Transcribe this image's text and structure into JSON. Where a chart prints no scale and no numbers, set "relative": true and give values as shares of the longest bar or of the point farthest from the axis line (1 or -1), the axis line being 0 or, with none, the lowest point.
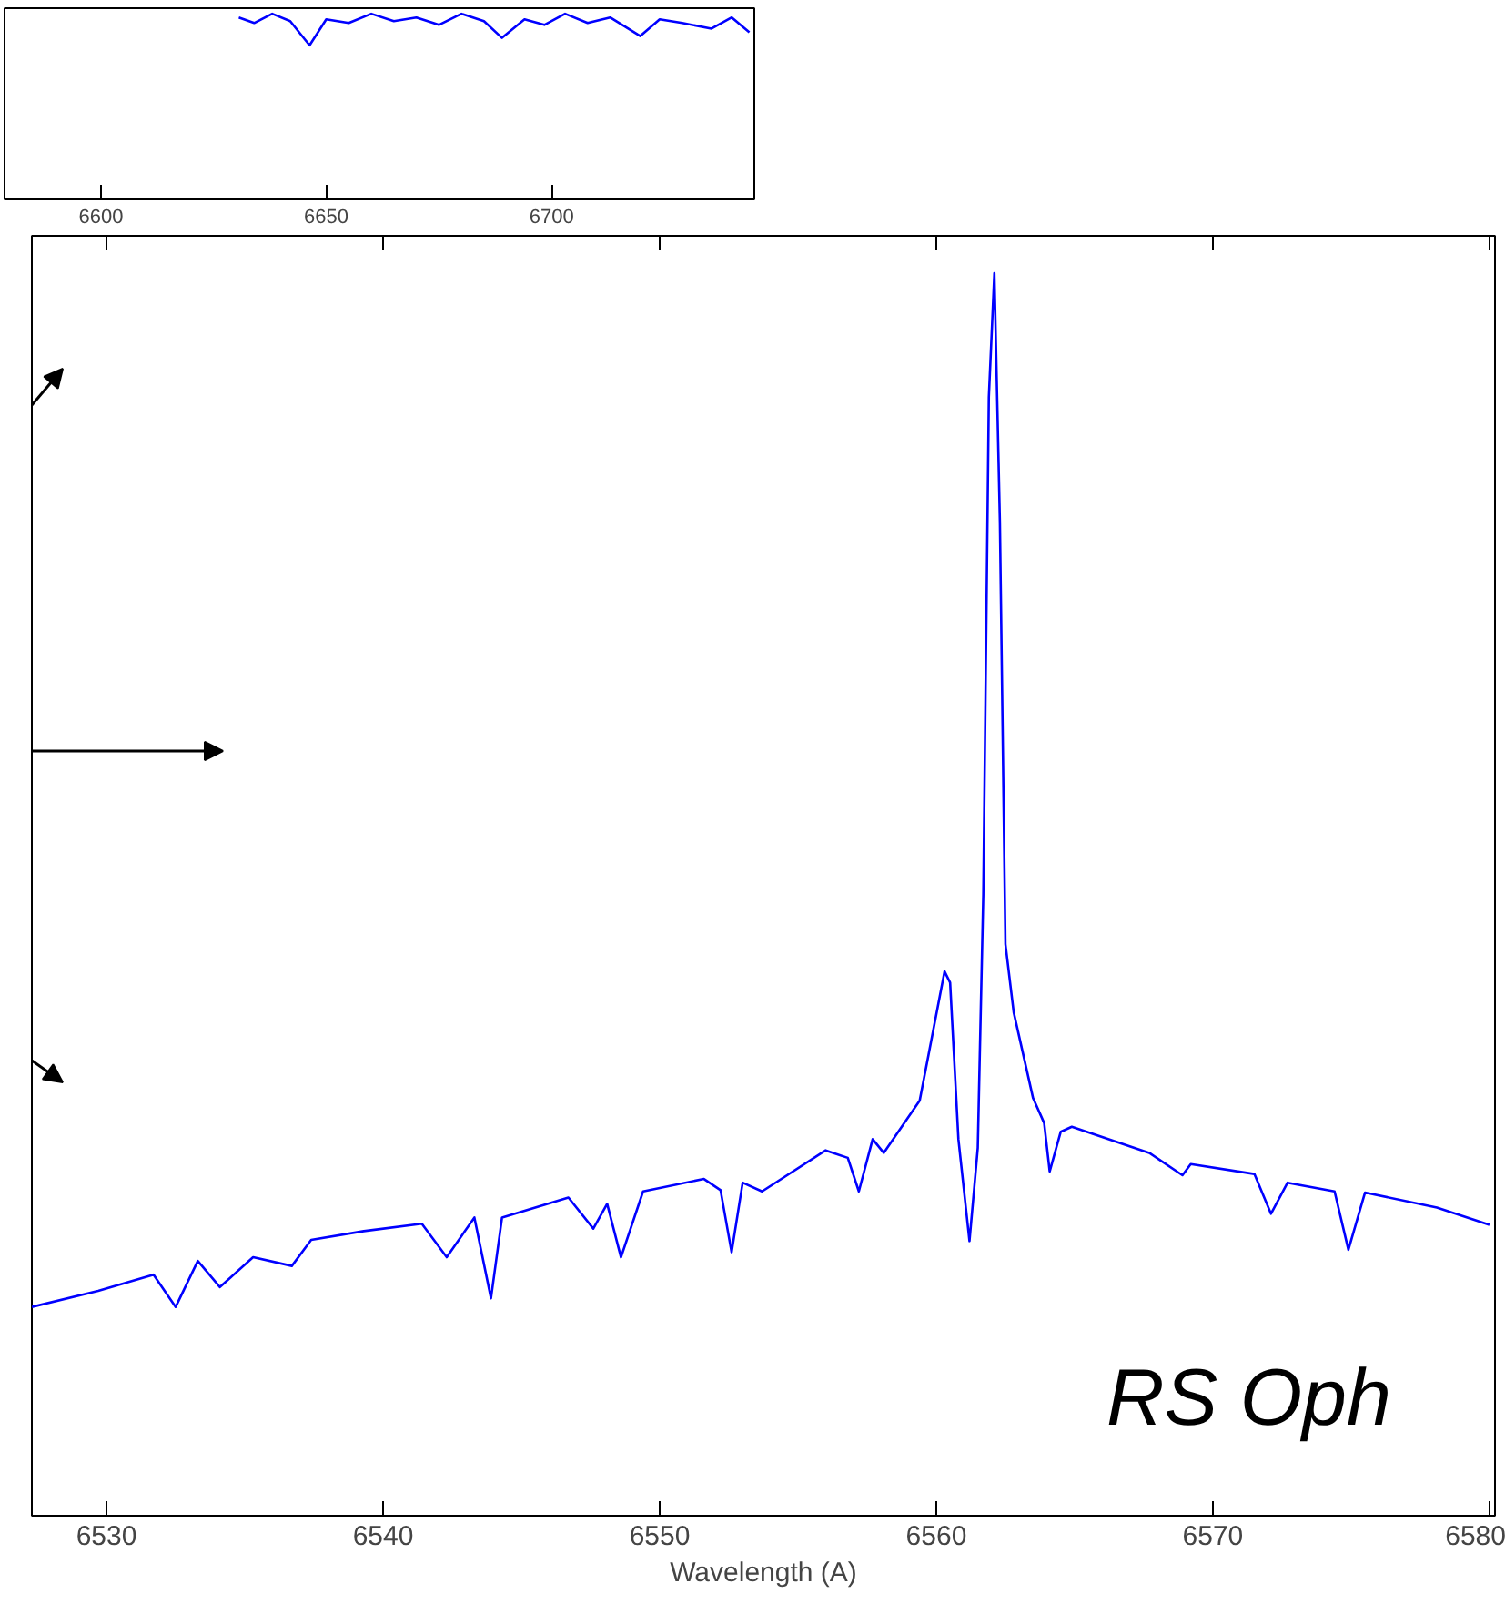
{
  "chart_data": [
    {
      "type": "line",
      "relative": true,
      "xlim": [
        6578.6,
        6745
      ],
      "xticks": [
        6600,
        6650,
        6700
      ],
      "grid": false,
      "x": [
        6630.6,
        6634,
        6638,
        6642,
        6646.3,
        6650,
        6655,
        6660,
        6665,
        6670,
        6675,
        6680,
        6685,
        6689,
        6694,
        6698.4,
        6703,
        6708,
        6713,
        6719.7,
        6724,
        6729,
        6735.5,
        6740,
        6743.9
      ],
      "series": [
        {
          "color": "#0000ff",
          "values": [
            0.98,
            0.95,
            1.0,
            0.96,
            0.83,
            0.97,
            0.95,
            1.0,
            0.96,
            0.98,
            0.94,
            1.0,
            0.96,
            0.87,
            0.97,
            0.94,
            1.0,
            0.95,
            0.98,
            0.88,
            0.97,
            0.95,
            0.92,
            0.98,
            0.9
          ]
        }
      ]
    },
    {
      "type": "line",
      "relative": true,
      "xlabel": "Wavelength (A)",
      "xlim": [
        6527.3,
        6580.2
      ],
      "xticks": [
        6530,
        6540,
        6550,
        6560,
        6570,
        6580
      ],
      "grid": false,
      "annotations": [
        "RS Oph"
      ],
      "x": [
        6527.3,
        6529.7,
        6531.7,
        6532.5,
        6533.3,
        6534.1,
        6535.3,
        6536.7,
        6537.4,
        6539.3,
        6541.4,
        6542.3,
        6543.3,
        6543.9,
        6544.3,
        6546.7,
        6547.6,
        6548.1,
        6548.6,
        6549.4,
        6551.6,
        6552.2,
        6552.6,
        6553.0,
        6553.7,
        6556.0,
        6556.8,
        6557.2,
        6557.7,
        6558.1,
        6559.4,
        6560.3,
        6560.5,
        6560.8,
        6561.2,
        6561.5,
        6561.7,
        6561.9,
        6562.1,
        6562.3,
        6562.5,
        6562.8,
        6563.5,
        6563.9,
        6564.1,
        6564.5,
        6564.9,
        6567.7,
        6568.9,
        6569.2,
        6571.5,
        6572.1,
        6572.7,
        6574.4,
        6574.9,
        6575.5,
        6578.1,
        6580.0
      ],
      "series": [
        {
          "color": "#0000ff",
          "values": [
            0.168,
            0.181,
            0.194,
            0.168,
            0.205,
            0.184,
            0.208,
            0.201,
            0.222,
            0.229,
            0.235,
            0.208,
            0.24,
            0.175,
            0.24,
            0.256,
            0.231,
            0.251,
            0.208,
            0.261,
            0.271,
            0.262,
            0.212,
            0.268,
            0.261,
            0.294,
            0.288,
            0.261,
            0.303,
            0.292,
            0.334,
            0.438,
            0.429,
            0.303,
            0.221,
            0.296,
            0.5,
            0.9,
            1.0,
            0.8,
            0.46,
            0.405,
            0.336,
            0.316,
            0.277,
            0.309,
            0.313,
            0.292,
            0.274,
            0.283,
            0.275,
            0.243,
            0.268,
            0.261,
            0.214,
            0.26,
            0.248,
            0.234
          ]
        }
      ]
    }
  ]
}
